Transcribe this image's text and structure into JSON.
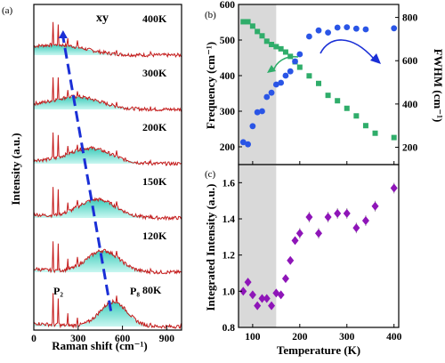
{
  "colors": {
    "frequency": "#2a55e6",
    "fwhm": "#2fad6a",
    "integrated": "#8e15b8",
    "spectrum": "#c41b1b",
    "fill_light": "#bff5ee",
    "fill_dark": "#1fc4b0",
    "shade": "#d9d9d9",
    "trend_arrow": "#1a2fd6"
  },
  "chart_data": [
    {
      "type": "line",
      "panel": "(a)",
      "title": "xy",
      "xlabel": "Raman shift (cm⁻¹)",
      "ylabel": "Intensity (a.u.)",
      "xlim": [
        0,
        1000
      ],
      "xticks": [
        0,
        300,
        600,
        900
      ],
      "series": [
        {
          "name": "400K",
          "broad_peak_center": 180
        },
        {
          "name": "300K",
          "broad_peak_center": 290
        },
        {
          "name": "200K",
          "broad_peak_center": 380
        },
        {
          "name": "150K",
          "broad_peak_center": 430
        },
        {
          "name": "120K",
          "broad_peak_center": 470
        },
        {
          "name": "80K",
          "broad_peak_center": 540
        }
      ],
      "sharp_peaks": [
        130,
        165,
        230,
        295,
        560,
        790
      ],
      "annotations": [
        "P₂",
        "P₈"
      ]
    },
    {
      "type": "scatter",
      "panel": "(b)",
      "xlabel": "",
      "ylabel": "Frequency (cm⁻¹)",
      "ylabel_right": "FWHM (cm⁻¹)",
      "xlim": [
        70,
        410
      ],
      "ylim": [
        150,
        600
      ],
      "ylim_right": [
        120,
        860
      ],
      "xticks": [
        100,
        200,
        300,
        400
      ],
      "yticks": [
        200,
        300,
        400,
        500,
        600
      ],
      "yticks_right": [
        200,
        400,
        600,
        800
      ],
      "shaded_x": [
        70,
        150
      ],
      "series": [
        {
          "axis": "left",
          "marker": "circle",
          "x": [
            80,
            90,
            100,
            110,
            120,
            130,
            140,
            150,
            160,
            170,
            180,
            190,
            200,
            220,
            240,
            260,
            280,
            300,
            320,
            340,
            400
          ],
          "y": [
            213,
            207,
            258,
            297,
            300,
            340,
            352,
            375,
            380,
            400,
            412,
            440,
            460,
            510,
            527,
            521,
            535,
            536,
            532,
            530,
            533
          ]
        },
        {
          "axis": "right",
          "marker": "square",
          "x": [
            80,
            90,
            100,
            110,
            120,
            130,
            140,
            150,
            160,
            170,
            180,
            190,
            200,
            220,
            240,
            260,
            280,
            300,
            320,
            340,
            360,
            400
          ],
          "y": [
            780,
            780,
            760,
            735,
            715,
            690,
            675,
            665,
            655,
            640,
            620,
            595,
            570,
            530,
            495,
            440,
            415,
            380,
            345,
            300,
            265,
            245
          ]
        }
      ]
    },
    {
      "type": "scatter",
      "panel": "(c)",
      "xlabel": "Temperature (K)",
      "ylabel": "Integrated Intensity (a.u.)",
      "xlim": [
        70,
        410
      ],
      "ylim": [
        0.8,
        1.7
      ],
      "xticks": [
        100,
        200,
        300,
        400
      ],
      "yticks": [
        0.8,
        1.0,
        1.2,
        1.4,
        1.6
      ],
      "shaded_x": [
        70,
        150
      ],
      "series": [
        {
          "marker": "diamond",
          "x": [
            80,
            90,
            100,
            110,
            120,
            130,
            140,
            150,
            160,
            170,
            180,
            190,
            200,
            220,
            240,
            260,
            280,
            300,
            320,
            340,
            360,
            400
          ],
          "y": [
            1.0,
            1.05,
            0.98,
            0.92,
            0.96,
            0.96,
            0.92,
            0.99,
            0.98,
            1.07,
            1.17,
            1.28,
            1.32,
            1.41,
            1.32,
            1.41,
            1.43,
            1.43,
            1.35,
            1.39,
            1.47,
            1.57
          ]
        }
      ]
    }
  ]
}
